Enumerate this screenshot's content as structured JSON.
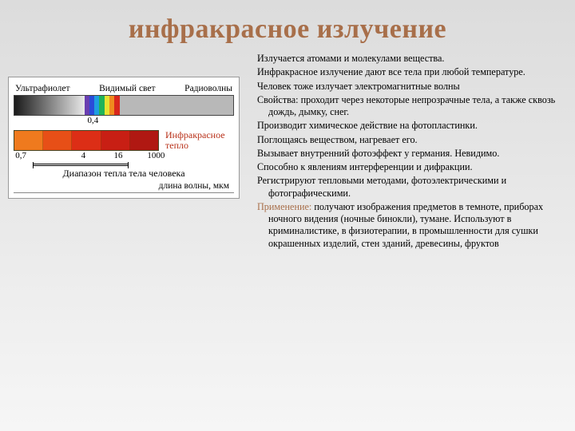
{
  "colors": {
    "background_gradient_top": "#dcdcdc",
    "background_gradient_bottom": "#f6f6f6",
    "title_color": "#a86f4a",
    "text_color": "#000000",
    "highlight_color": "#a86f4a",
    "diagram_bg": "#ffffff",
    "ir_label_color": "#b83018"
  },
  "title": "инфракрасное излучение",
  "body": {
    "p1": "Излучается атомами и молекулами вещества.",
    "p2": "Инфракрасное излучение дают все тела при любой температуре.",
    "p3": "Человек тоже излучает электромагнитные волны",
    "p4": "Свойства: проходит через некоторые непрозрачные тела, а также сквозь дождь, дымку, снег.",
    "p5": "Производит химическое действие на фотопластинки.",
    "p6": "Поглощаясь веществом, нагревает его.",
    "p7": "Вызывает внутренний фотоэффект у германия. Невидимо.",
    "p8": "Способно к явлениям интерференции и дифракции.",
    "p9": "Регистрируют тепловыми методами, фотоэлектрическими и фотографическими.",
    "application_label": "Применение:",
    "p10_rest": " получают изображения предметов в темноте, приборах ночного видения (ночные бинокли), тумане. Используют в криминалистике, в физиотерапии, в промышленности для сушки окрашенных изделий, стен зданий, древесины, фруктов"
  },
  "diagram": {
    "labels": {
      "uv": "Ультрафиолет",
      "visible": "Видимый свет",
      "radio": "Радиоволны",
      "ir_heat_line1": "Инфракрасное",
      "ir_heat_line2": "тепло",
      "body_heat": "Диапазон тепла тела человека",
      "axis": "длина волны, мкм"
    },
    "top_tick": {
      "value": "0,4",
      "position_pct": 36
    },
    "visible_spectrum_colors": [
      "#6a3fb0",
      "#2b4bd8",
      "#1f9ee0",
      "#1fb35a",
      "#e7e233",
      "#ef8a1e",
      "#d8261c"
    ],
    "ir_bar_colors": [
      "#ef7a1e",
      "#e74f17",
      "#dc2e16",
      "#c81f14",
      "#b01812"
    ],
    "ir_ticks": [
      {
        "value": "0,7",
        "position_pct": 5
      },
      {
        "value": "4",
        "position_pct": 48
      },
      {
        "value": "16",
        "position_pct": 72
      },
      {
        "value": "1000",
        "position_pct": 98
      }
    ]
  }
}
